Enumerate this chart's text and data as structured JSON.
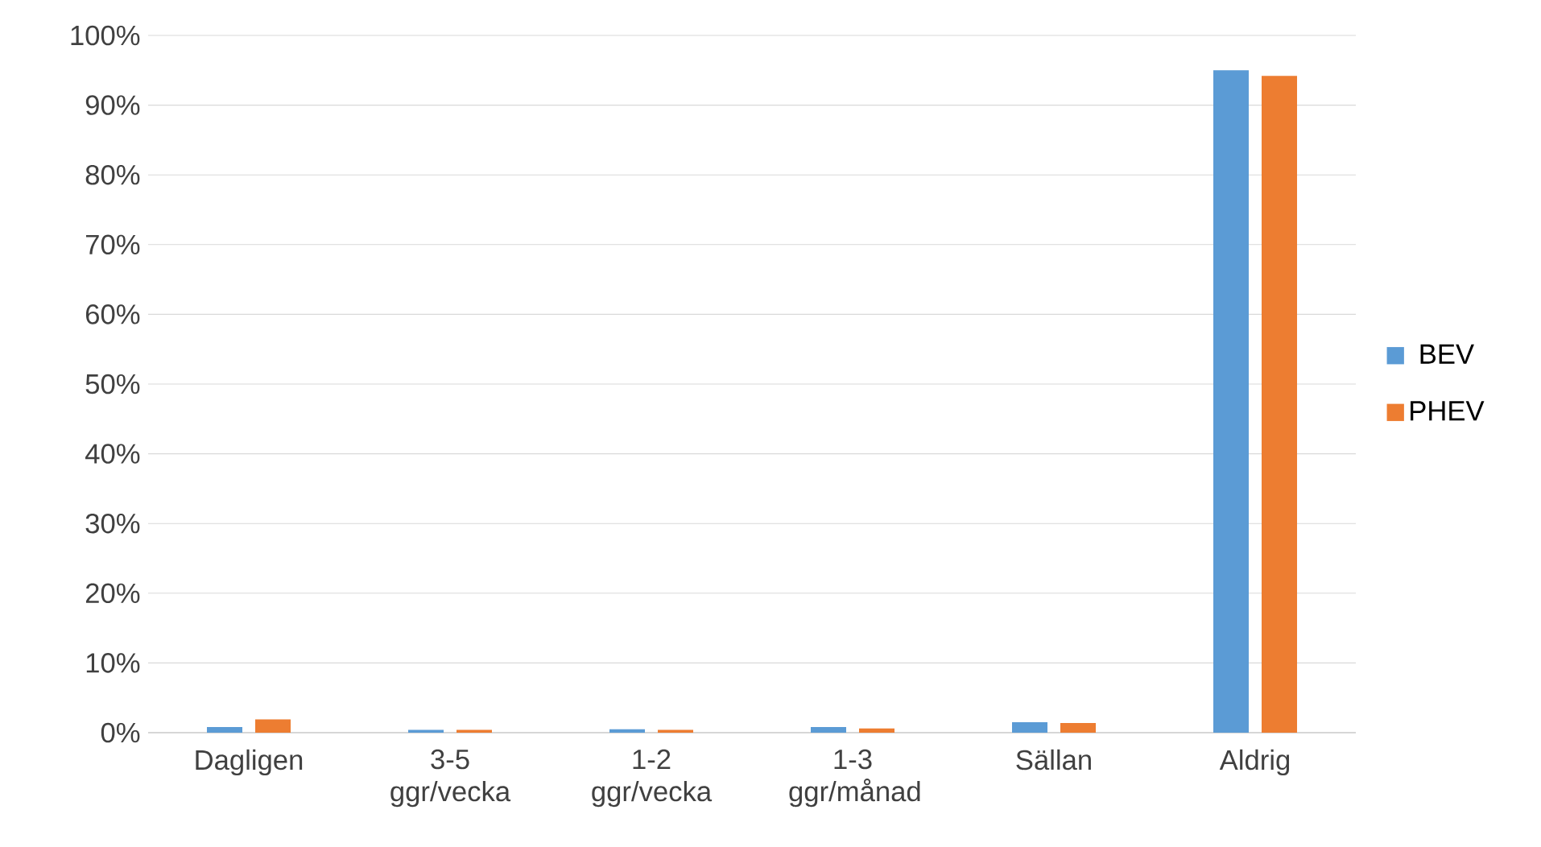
{
  "chart_data": {
    "type": "bar",
    "categories": [
      "Dagligen",
      "3-5 ggr/vecka",
      "1-2 ggr/vecka",
      "1-3 ggr/månad",
      "Sällan",
      "Aldrig"
    ],
    "series": [
      {
        "name": "BEV",
        "color": "#5b9bd5",
        "values": [
          0.8,
          0.4,
          0.5,
          0.8,
          1.5,
          95
        ]
      },
      {
        "name": "PHEV",
        "color": "#ed7d31",
        "values": [
          1.9,
          0.4,
          0.4,
          0.6,
          1.4,
          94.2
        ]
      }
    ],
    "ylim": [
      0,
      100
    ],
    "yticks": [
      {
        "value": 0,
        "label": "0%"
      },
      {
        "value": 10,
        "label": "10%"
      },
      {
        "value": 20,
        "label": "20%"
      },
      {
        "value": 30,
        "label": "30%"
      },
      {
        "value": 40,
        "label": "40%"
      },
      {
        "value": 50,
        "label": "50%"
      },
      {
        "value": 60,
        "label": "60%"
      },
      {
        "value": 70,
        "label": "70%"
      },
      {
        "value": 80,
        "label": "80%"
      },
      {
        "value": 90,
        "label": "90%"
      },
      {
        "value": 100,
        "label": "100%"
      }
    ],
    "grid": "y",
    "legend": "right"
  }
}
